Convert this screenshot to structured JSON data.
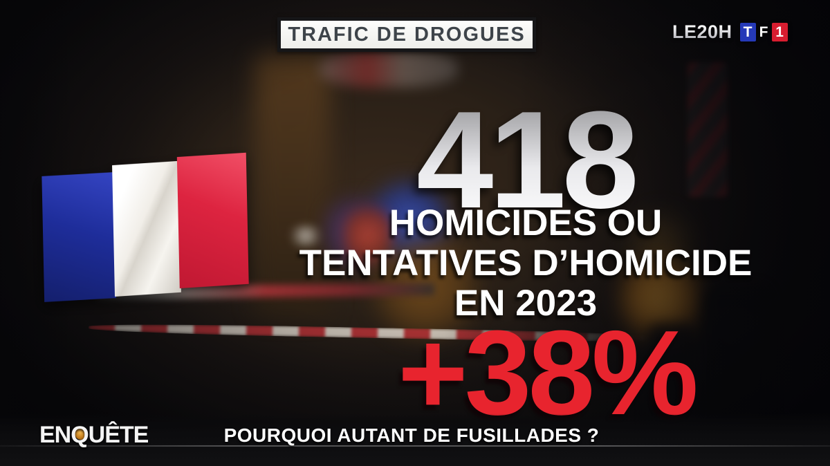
{
  "colors": {
    "alert_red": "#e8242e",
    "tf1_blue": "#2539b8",
    "tf1_red": "#d81d30",
    "flag_blue": "#1e2d9a",
    "flag_red": "#dd2440",
    "topic_text": "#3e444a",
    "gold_accent": "#c27a1a",
    "metal_top": "#8d8d90",
    "metal_bottom": "#ffffff"
  },
  "topic_banner": {
    "label": "TRAFIC DE DROGUES"
  },
  "branding": {
    "program": "LE20H",
    "channel_logo": {
      "t": "T",
      "f": "F",
      "one": "1"
    }
  },
  "statistic": {
    "value": "418",
    "line1": "HOMICIDES OU",
    "line2": "TENTATIVES D’HOMICIDE",
    "line3": "EN 2023",
    "change": "+38%"
  },
  "bottom_bar": {
    "program_logo": "ENQUÊTE",
    "headline": "POURQUOI AUTANT DE FUSILLADES ?"
  }
}
